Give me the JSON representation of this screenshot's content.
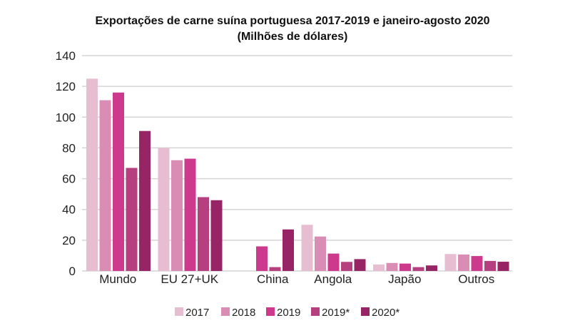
{
  "chart_data": {
    "type": "bar",
    "title": "Exportações de carne suína portuguesa 2017-2019 e janeiro-agosto 2020",
    "subtitle": "(Milhões de dólares)",
    "categories": [
      "Mundo",
      "EU 27+UK",
      "China",
      "Angola",
      "Japão",
      "Outros"
    ],
    "series": [
      {
        "name": "2017",
        "color": "#e6bdd1",
        "values": [
          125,
          80,
          null,
          30,
          4.2,
          11
        ]
      },
      {
        "name": "2018",
        "color": "#d98db5",
        "values": [
          111,
          72,
          null,
          22.4,
          5.2,
          10.7
        ]
      },
      {
        "name": "2019",
        "color": "#cd3a8d",
        "values": [
          116,
          73,
          16,
          11.3,
          4.8,
          9.7
        ]
      },
      {
        "name": "2019*",
        "color": "#b63f80",
        "values": [
          67,
          48,
          2.5,
          5.9,
          2.5,
          6.5
        ]
      },
      {
        "name": "2020*",
        "color": "#972566",
        "values": [
          91,
          46,
          27,
          7.7,
          3.6,
          6
        ]
      }
    ],
    "ylim": [
      0,
      140
    ],
    "yticks": [
      "0",
      "20",
      "40",
      "60",
      "80",
      "100",
      "120",
      "140"
    ],
    "grid": true,
    "legend": "bottom"
  }
}
